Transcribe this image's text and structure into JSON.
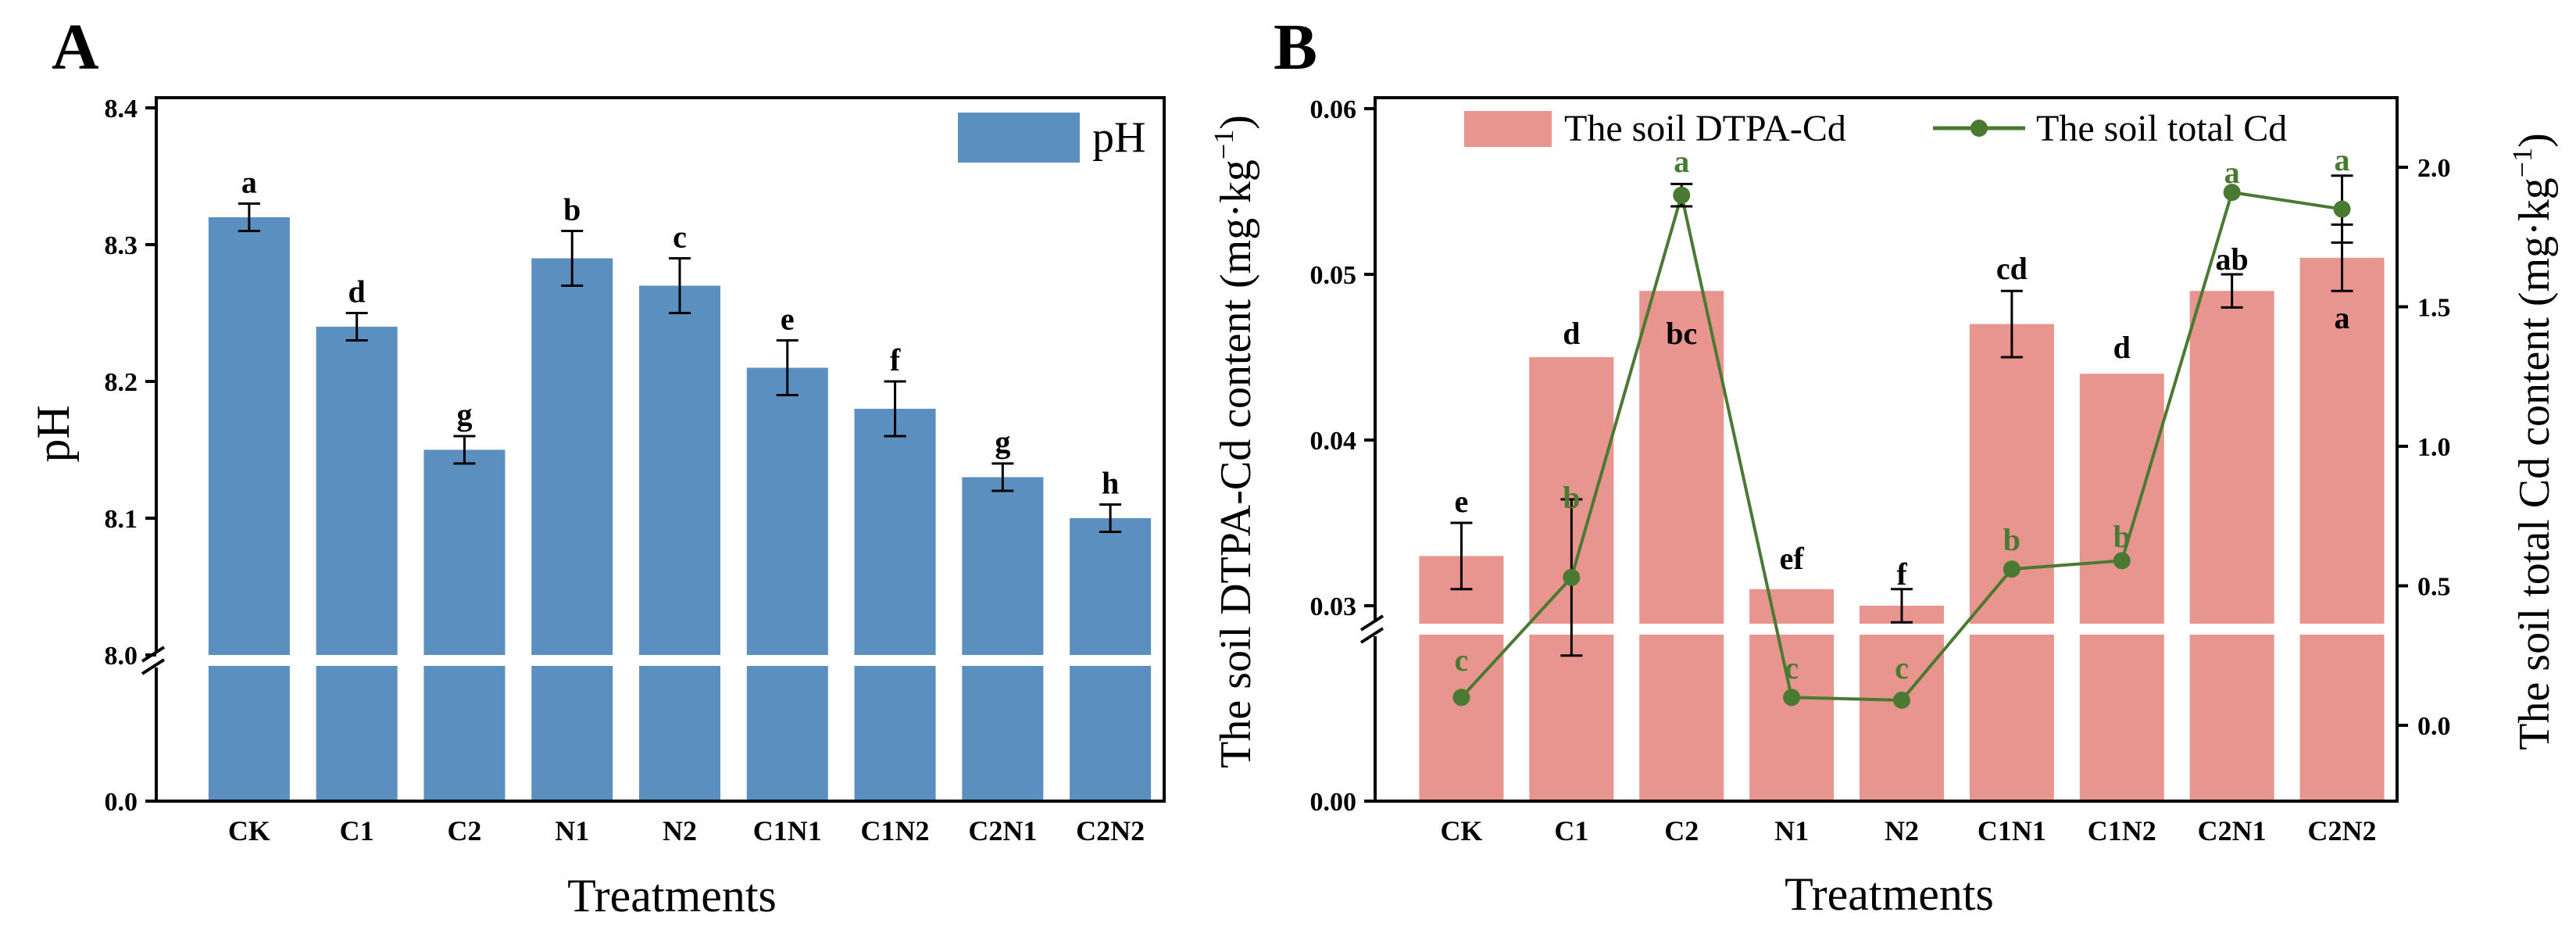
{
  "panel_labels": [
    "A",
    "B"
  ],
  "chart_data": [
    {
      "id": "A",
      "type": "bar",
      "title": "",
      "xlabel": "Treatments",
      "ylabel": "pH",
      "categories": [
        "CK",
        "C1",
        "C2",
        "N1",
        "N2",
        "C1N1",
        "C1N2",
        "C2N1",
        "C2N2"
      ],
      "series": [
        {
          "name": "pH",
          "color": "#5b8fc0",
          "values": [
            8.32,
            8.24,
            8.15,
            8.29,
            8.27,
            8.21,
            8.18,
            8.13,
            8.1
          ],
          "errors": [
            0.01,
            0.01,
            0.01,
            0.02,
            0.02,
            0.02,
            0.02,
            0.01,
            0.01
          ],
          "significance": [
            "a",
            "d",
            "g",
            "b",
            "c",
            "e",
            "f",
            "g",
            "h"
          ]
        }
      ],
      "y_axis_break": true,
      "yticks_upper": [
        "8.0",
        "8.1",
        "8.2",
        "8.3",
        "8.4"
      ],
      "yticks_lower": [
        "0.0"
      ],
      "ylim_upper": [
        8.0,
        8.4
      ],
      "legend": "top-right"
    },
    {
      "id": "B",
      "type": "bar",
      "title": "",
      "xlabel": "Treatments",
      "ylabel": "The soil DTPA-Cd  content (mg·kg",
      "ylabel_sup": "−1",
      "ylabel_end": ")",
      "ylabel_right": "The soil total Cd content (mg·kg",
      "ylabel_right_sup": "−1",
      "ylabel_right_end": ")",
      "categories": [
        "CK",
        "C1",
        "C2",
        "N1",
        "N2",
        "C1N1",
        "C1N2",
        "C2N1",
        "C2N2"
      ],
      "series": [
        {
          "name": "The soil DTPA-Cd",
          "type": "bar",
          "axis": "left",
          "color": "#e8948f",
          "values": [
            0.033,
            0.045,
            0.049,
            0.031,
            0.03,
            0.047,
            0.044,
            0.049,
            0.051
          ],
          "errors": [
            0.002,
            0.0,
            0.0,
            0.0,
            0.001,
            0.002,
            0.0,
            0.001,
            0.002
          ],
          "significance": [
            "e",
            "d",
            "bc",
            "ef",
            "f",
            "cd",
            "d",
            "ab",
            "a"
          ]
        },
        {
          "name": "The soil total Cd",
          "type": "line",
          "axis": "right",
          "color": "#4a7a32",
          "values": [
            0.1,
            0.53,
            1.9,
            0.1,
            0.09,
            0.56,
            0.59,
            1.91,
            1.85
          ],
          "errors": [
            0.0,
            0.28,
            0.04,
            0.0,
            0.0,
            0.0,
            0.0,
            0.0,
            0.12
          ],
          "significance": [
            "c",
            "b",
            "a",
            "c",
            "c",
            "b",
            "b",
            "a",
            "a"
          ]
        }
      ],
      "y_axis_break": true,
      "yticks_left_upper": [
        "0.03",
        "0.04",
        "0.05",
        "0.06"
      ],
      "yticks_left_lower": [
        "0.00"
      ],
      "ylim_left_upper": [
        0.028,
        0.06
      ],
      "yticks_right": [
        "0.0",
        "0.5",
        "1.0",
        "1.5",
        "2.0"
      ],
      "ylim_right": [
        -0.25,
        2.2
      ],
      "legend": "top"
    }
  ]
}
